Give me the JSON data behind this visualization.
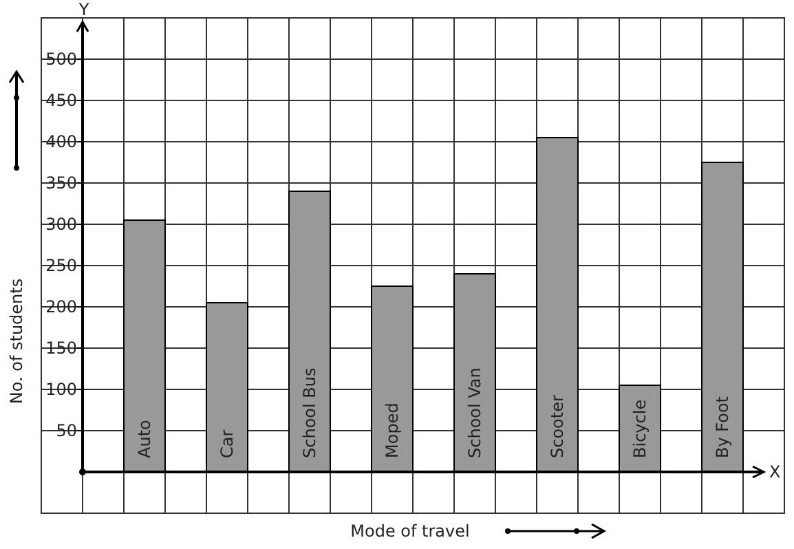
{
  "chart_data": {
    "type": "bar",
    "xlabel": "Mode of travel",
    "ylabel": "No. of students",
    "categories": [
      "Auto",
      "Car",
      "School Bus",
      "Moped",
      "School Van",
      "Scooter",
      "Bicycle",
      "By Foot"
    ],
    "values": [
      305,
      205,
      340,
      225,
      240,
      405,
      105,
      375
    ],
    "color": "#999999",
    "ylim": [
      -50,
      550
    ],
    "yticks": [
      50,
      100,
      150,
      200,
      250,
      300,
      350,
      400,
      450,
      500
    ],
    "grid": true,
    "annotations": [
      "Y",
      "X"
    ]
  }
}
